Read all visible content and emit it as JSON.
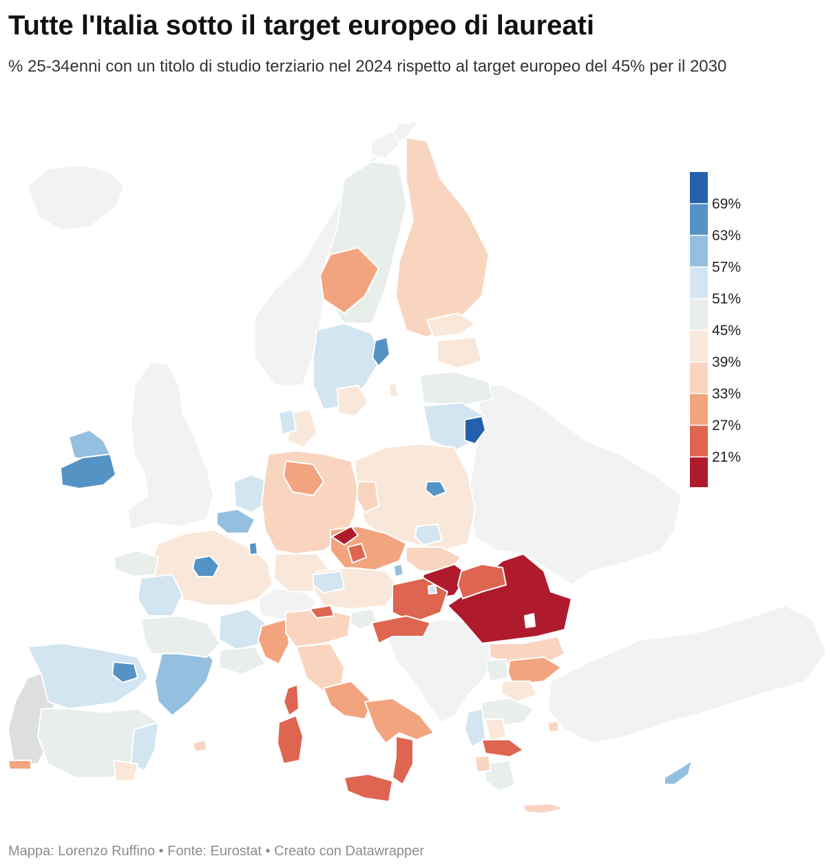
{
  "header": {
    "title": "Tutte l'Italia sotto il target europeo di laureati",
    "subtitle": "% 25-34enni con un titolo di studio terziario nel 2024 rispetto al target europeo del 45% per il 2030"
  },
  "footer": {
    "credit": "Mappa: Lorenzo Ruffino • Fonte: Eurostat • Creato con Datawrapper"
  },
  "legend": {
    "colors": [
      "#2361ad",
      "#5693c5",
      "#94bfdf",
      "#d2e5f1",
      "#e8eeea",
      "#f9e8da",
      "#f9d5c0",
      "#f2a47e",
      "#de6550",
      "#b01a2d"
    ],
    "labels": [
      "69%",
      "63%",
      "57%",
      "51%",
      "45%",
      "39%",
      "33%",
      "27%",
      "21%"
    ],
    "target_percent": 45
  },
  "map_colors": {
    "no_data": "#f2f2f2",
    "portugal": "#dedede",
    "border": "#ffffff"
  }
}
